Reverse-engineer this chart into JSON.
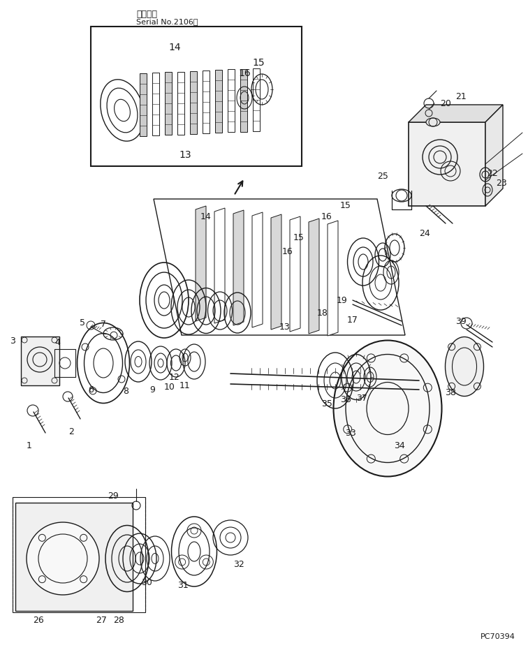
{
  "title_jp": "適用号機",
  "title_serial": "Serial No.2106～",
  "part_code": "PC70394",
  "bg_color": "#ffffff",
  "line_color": "#1a1a1a",
  "fig_width": 7.56,
  "fig_height": 9.31,
  "dpi": 100
}
